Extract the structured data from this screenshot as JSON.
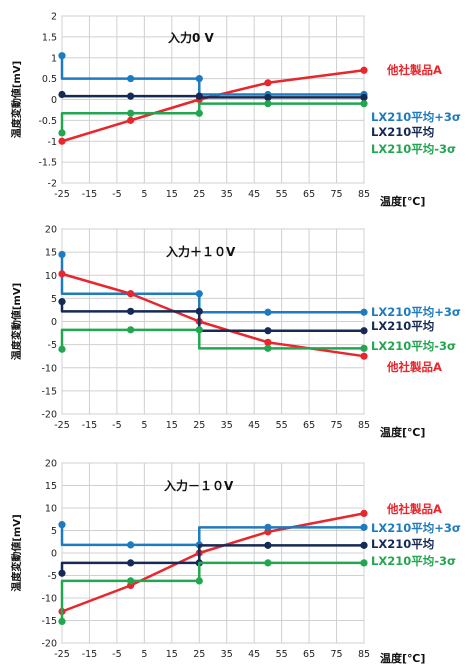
{
  "chart_data": [
    {
      "type": "line",
      "title": "入力0 V",
      "xlabel": "温度[℃]",
      "ylabel": "温度変動値[mV]",
      "x": [
        -25,
        0,
        25,
        50,
        85
      ],
      "xticks": [
        -25,
        -15,
        -5,
        5,
        15,
        25,
        35,
        45,
        55,
        65,
        75,
        85
      ],
      "xlim": [
        -25,
        85
      ],
      "ylim": [
        -2,
        2
      ],
      "yticks": [
        -2,
        -1.5,
        -1,
        -0.5,
        0,
        0.5,
        1,
        1.5,
        2
      ],
      "grid": true,
      "series": [
        {
          "name": "他社製品A",
          "color": "#e8262b",
          "values": [
            -1.0,
            -0.5,
            0.0,
            0.4,
            0.7
          ],
          "style": "line"
        },
        {
          "name": "LX210平均+3σ",
          "color": "#1f7bbf",
          "values": [
            1.05,
            0.5,
            0.5,
            0.12,
            0.12
          ],
          "style": "step"
        },
        {
          "name": "LX210平均",
          "color": "#162a56",
          "values": [
            0.12,
            0.08,
            0.08,
            0.05,
            0.05
          ],
          "style": "step"
        },
        {
          "name": "LX210平均-3σ",
          "color": "#22a650",
          "values": [
            -0.8,
            -0.33,
            -0.33,
            -0.1,
            -0.1
          ],
          "style": "step"
        }
      ],
      "legend": [
        {
          "label": "他社製品A",
          "color": "#e8262b"
        },
        {
          "label": "LX210平均+3σ",
          "color": "#1f7bbf"
        },
        {
          "label": "LX210平均",
          "color": "#162a56"
        },
        {
          "label": "LX210平均-3σ",
          "color": "#22a650"
        }
      ]
    },
    {
      "type": "line",
      "title": "入力＋１０V",
      "xlabel": "温度[℃]",
      "ylabel": "温度変動値[mV]",
      "x": [
        -25,
        0,
        25,
        50,
        85
      ],
      "xticks": [
        -25,
        -15,
        -5,
        5,
        15,
        25,
        35,
        45,
        55,
        65,
        75,
        85
      ],
      "xlim": [
        -25,
        85
      ],
      "ylim": [
        -20,
        20
      ],
      "yticks": [
        -20,
        -15,
        -10,
        -5,
        0,
        5,
        10,
        15,
        20
      ],
      "grid": true,
      "series": [
        {
          "name": "LX210平均+3σ",
          "color": "#1f7bbf",
          "values": [
            14.5,
            6.0,
            6.0,
            2.0,
            2.0
          ],
          "style": "step"
        },
        {
          "name": "他社製品A",
          "color": "#e8262b",
          "values": [
            10.3,
            6.0,
            0.0,
            -4.5,
            -7.5
          ],
          "style": "line"
        },
        {
          "name": "LX210平均",
          "color": "#162a56",
          "values": [
            4.3,
            2.2,
            2.2,
            -2.0,
            -2.0
          ],
          "style": "step"
        },
        {
          "name": "LX210平均-3σ",
          "color": "#22a650",
          "values": [
            -6.0,
            -1.8,
            -1.8,
            -5.8,
            -5.8
          ],
          "style": "step"
        }
      ],
      "legend": [
        {
          "label": "LX210平均+3σ",
          "color": "#1f7bbf"
        },
        {
          "label": "LX210平均",
          "color": "#162a56"
        },
        {
          "label": "LX210平均-3σ",
          "color": "#22a650"
        },
        {
          "label": "他社製品A",
          "color": "#e8262b"
        }
      ]
    },
    {
      "type": "line",
      "title": "入力－１０V",
      "xlabel": "温度[℃]",
      "ylabel": "温度変動値[mV]",
      "x": [
        -25,
        0,
        25,
        50,
        85
      ],
      "xticks": [
        -25,
        -15,
        -5,
        5,
        15,
        25,
        35,
        45,
        55,
        65,
        75,
        85
      ],
      "xlim": [
        -25,
        85
      ],
      "ylim": [
        -20,
        20
      ],
      "yticks": [
        -20,
        -15,
        -10,
        -5,
        0,
        5,
        10,
        15,
        20
      ],
      "grid": true,
      "series": [
        {
          "name": "他社製品A",
          "color": "#e8262b",
          "values": [
            -13.0,
            -7.2,
            0.0,
            4.7,
            8.8
          ],
          "style": "line"
        },
        {
          "name": "LX210平均+3σ",
          "color": "#1f7bbf",
          "values": [
            6.3,
            1.8,
            1.8,
            5.7,
            5.7
          ],
          "style": "step"
        },
        {
          "name": "LX210平均",
          "color": "#162a56",
          "values": [
            -4.5,
            -2.2,
            -2.2,
            1.7,
            1.7
          ],
          "style": "step"
        },
        {
          "name": "LX210平均-3σ",
          "color": "#22a650",
          "values": [
            -15.2,
            -6.2,
            -6.2,
            -2.2,
            -2.2
          ],
          "style": "step"
        }
      ],
      "legend": [
        {
          "label": "他社製品A",
          "color": "#e8262b"
        },
        {
          "label": "LX210平均+3σ",
          "color": "#1f7bbf"
        },
        {
          "label": "LX210平均",
          "color": "#162a56"
        },
        {
          "label": "LX210平均-3σ",
          "color": "#22a650"
        }
      ]
    }
  ]
}
